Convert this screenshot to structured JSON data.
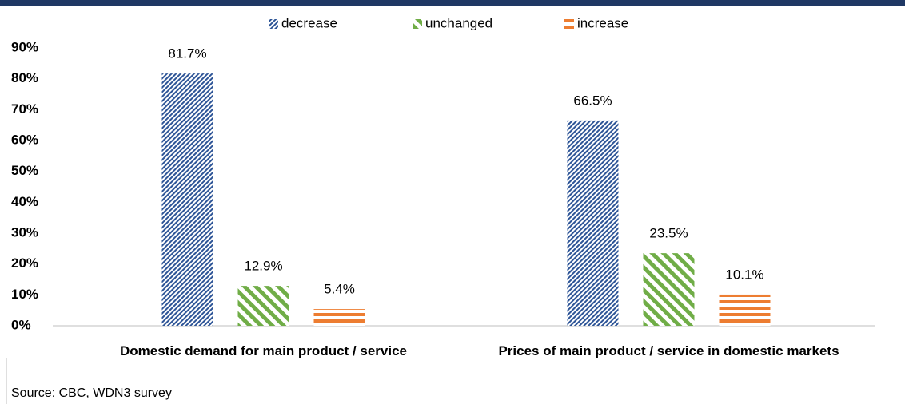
{
  "chart_data": {
    "type": "bar",
    "categories": [
      "Domestic demand for main product / service",
      "Prices of main product / service in domestic markets"
    ],
    "series": [
      {
        "name": "decrease",
        "color": "#2e5597",
        "pattern": "diagonal-fine",
        "values": [
          81.7,
          66.5
        ],
        "value_labels": [
          "81.7%",
          "66.5%"
        ]
      },
      {
        "name": "unchanged",
        "color": "#70ad47",
        "pattern": "diagonal-wide",
        "values": [
          12.9,
          23.5
        ],
        "value_labels": [
          "12.9%",
          "23.5%"
        ]
      },
      {
        "name": "increase",
        "color": "#ed7d31",
        "pattern": "horizontal",
        "values": [
          5.4,
          10.1
        ],
        "value_labels": [
          "5.4%",
          "10.1%"
        ]
      }
    ],
    "ylim": [
      0,
      90
    ],
    "yticks": [
      {
        "value": 0,
        "label": "0%"
      },
      {
        "value": 10,
        "label": "10%"
      },
      {
        "value": 20,
        "label": "20%"
      },
      {
        "value": 30,
        "label": "30%"
      },
      {
        "value": 40,
        "label": "40%"
      },
      {
        "value": 50,
        "label": "50%"
      },
      {
        "value": 60,
        "label": "60%"
      },
      {
        "value": 70,
        "label": "70%"
      },
      {
        "value": 80,
        "label": "80%"
      },
      {
        "value": 90,
        "label": "90%"
      }
    ],
    "legend": "top",
    "source": "Source: CBC, WDN3 survey"
  }
}
